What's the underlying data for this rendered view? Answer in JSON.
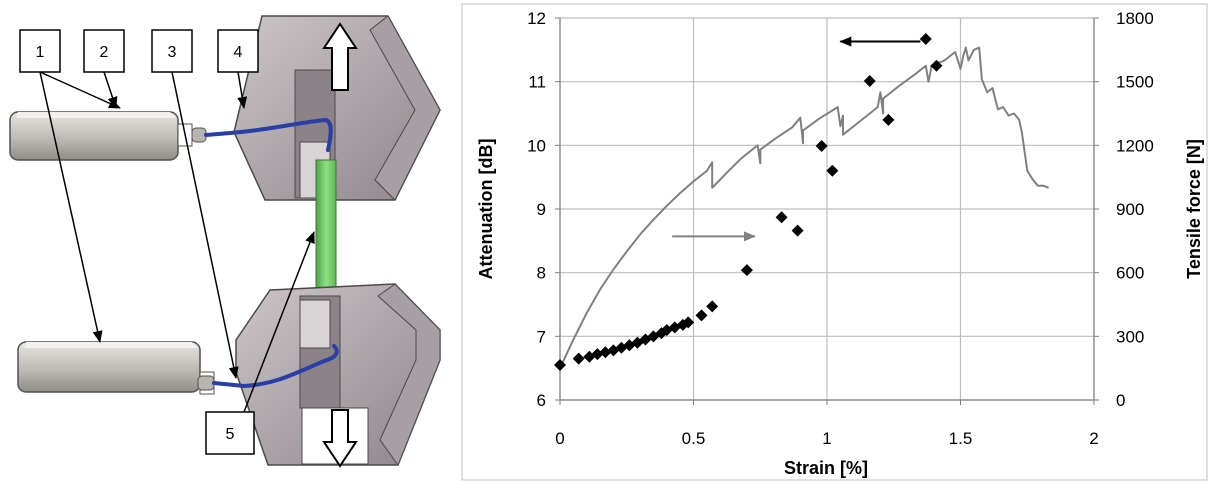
{
  "diagram": {
    "callouts": [
      {
        "label": "1"
      },
      {
        "label": "2"
      },
      {
        "label": "3"
      },
      {
        "label": "4"
      },
      {
        "label": "5"
      }
    ],
    "colors": {
      "clamp": "#b9b2b5",
      "clamp_dark": "#8f878b",
      "box": "#c8c6c0",
      "cable": "#2a3ea8",
      "specimen": "#79d36a"
    }
  },
  "chart_data": {
    "type": "scatter",
    "title": "",
    "xlabel": "Strain [%]",
    "ylabel": "Attenuation [dB]",
    "y2label": "Tensile force [N]",
    "xlim": [
      0,
      2
    ],
    "ylim": [
      6,
      12
    ],
    "y2lim": [
      0,
      1800
    ],
    "x_ticks": [
      "0",
      "0.5",
      "1",
      "1.5",
      "2"
    ],
    "y_ticks": [
      "6",
      "7",
      "8",
      "9",
      "10",
      "11",
      "12"
    ],
    "y2_ticks": [
      "0",
      "300",
      "600",
      "900",
      "1200",
      "1500",
      "1800"
    ],
    "grid": true,
    "series": [
      {
        "marker": "diamond",
        "axis": "left",
        "color": "#000000",
        "x": [
          0.0,
          0.07,
          0.11,
          0.14,
          0.17,
          0.2,
          0.23,
          0.26,
          0.29,
          0.32,
          0.35,
          0.38,
          0.4,
          0.43,
          0.46,
          0.48,
          0.53,
          0.57,
          0.7,
          0.83,
          0.89,
          0.98,
          1.02,
          1.16,
          1.23,
          1.37,
          1.41
        ],
        "y": [
          6.55,
          6.65,
          6.68,
          6.72,
          6.75,
          6.78,
          6.82,
          6.86,
          6.9,
          6.95,
          7.0,
          7.05,
          7.1,
          7.14,
          7.18,
          7.22,
          7.33,
          7.47,
          8.04,
          8.87,
          8.66,
          9.99,
          9.6,
          11.01,
          10.4,
          11.67,
          11.25
        ]
      },
      {
        "marker": "none",
        "axis": "right",
        "color": "#808080",
        "x": [
          0.0,
          0.05,
          0.1,
          0.15,
          0.2,
          0.25,
          0.3,
          0.35,
          0.4,
          0.45,
          0.5,
          0.55,
          0.57,
          0.57,
          0.62,
          0.68,
          0.74,
          0.75,
          0.75,
          0.81,
          0.87,
          0.9,
          0.91,
          0.91,
          0.97,
          1.04,
          1.05,
          1.06,
          1.06,
          1.12,
          1.19,
          1.2,
          1.21,
          1.21,
          1.27,
          1.33,
          1.37,
          1.38,
          1.39,
          1.39,
          1.44,
          1.48,
          1.5,
          1.51,
          1.52,
          1.53,
          1.55,
          1.57,
          1.58,
          1.6,
          1.62,
          1.64,
          1.66,
          1.68,
          1.7,
          1.72,
          1.73,
          1.75,
          1.77,
          1.79,
          1.81,
          1.83
        ],
        "y": [
          150,
          285,
          410,
          520,
          615,
          700,
          780,
          850,
          915,
          975,
          1030,
          1080,
          1120,
          1000,
          1065,
          1140,
          1200,
          1115,
          1180,
          1235,
          1285,
          1330,
          1210,
          1270,
          1325,
          1380,
          1290,
          1340,
          1250,
          1310,
          1380,
          1450,
          1350,
          1420,
          1480,
          1535,
          1575,
          1500,
          1560,
          1575,
          1600,
          1640,
          1560,
          1620,
          1660,
          1600,
          1650,
          1660,
          1510,
          1450,
          1470,
          1370,
          1380,
          1340,
          1350,
          1320,
          1260,
          1080,
          1040,
          1010,
          1010,
          1000
        ]
      }
    ],
    "annotations": [
      {
        "type": "arrow",
        "direction": "right",
        "color": "#808080",
        "x_start": 0.42,
        "x_end": 0.73,
        "y": 8.57
      },
      {
        "type": "arrow",
        "direction": "left",
        "color": "#000000",
        "x_start": 1.35,
        "x_end": 1.05,
        "y": 11.63
      }
    ]
  }
}
